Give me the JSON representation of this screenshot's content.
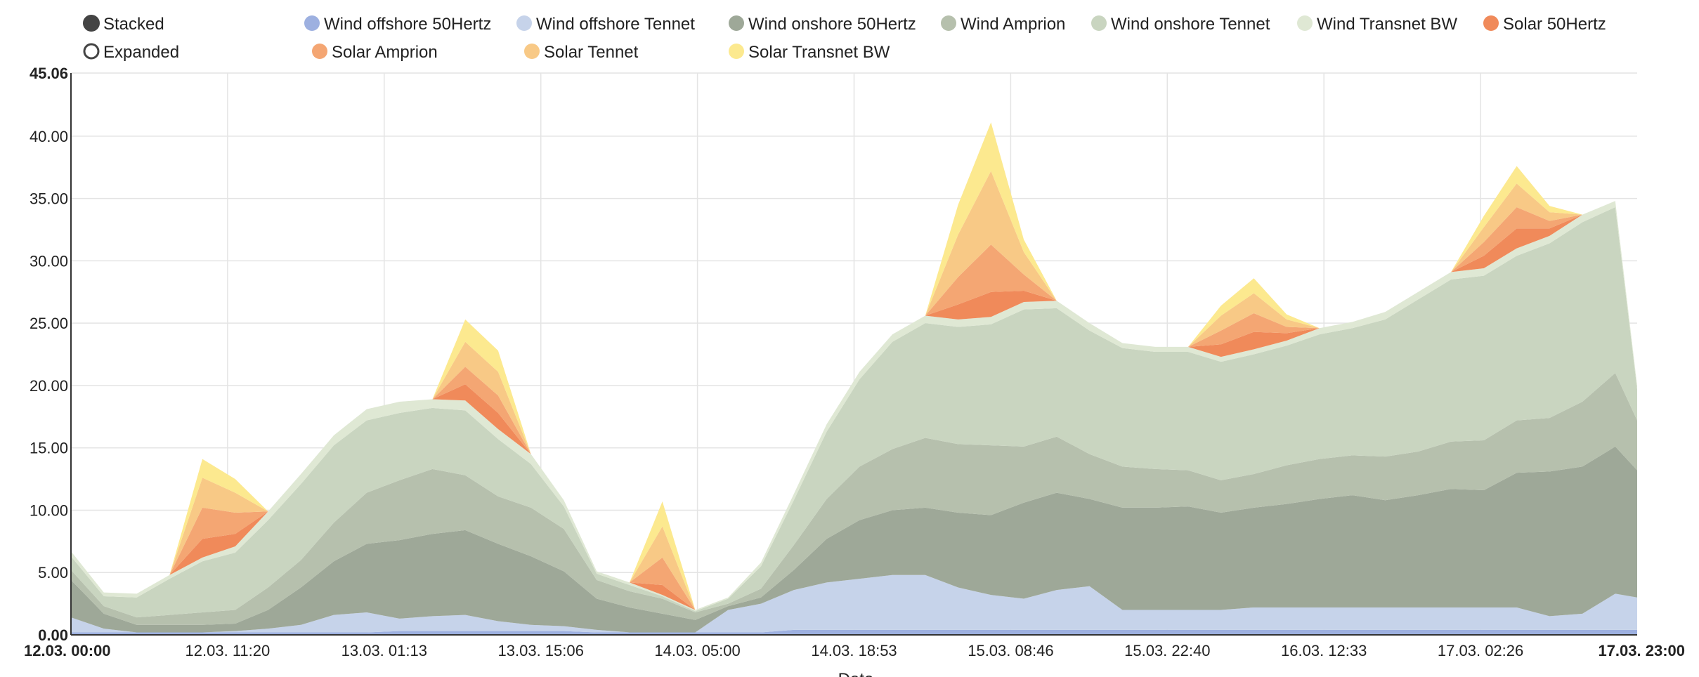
{
  "controls": {
    "stacked_label": "Stacked",
    "expanded_label": "Expanded",
    "selected": "stacked"
  },
  "chart_data": {
    "type": "area",
    "stacked": true,
    "xlabel": "Date",
    "ylabel": "",
    "ylim": [
      0,
      45.06
    ],
    "y_ticks": [
      "0.00",
      "5.00",
      "10.00",
      "15.00",
      "20.00",
      "25.00",
      "30.00",
      "35.00",
      "40.00",
      "45.06"
    ],
    "x_range": [
      "2015-03-12 00:00",
      "2015-03-17 23:00"
    ],
    "x_ticks": [
      "12.03. 00:00",
      "12.03. 11:20",
      "13.03. 01:13",
      "13.03. 15:06",
      "14.03. 05:00",
      "14.03. 18:53",
      "15.03. 08:46",
      "15.03. 22:40",
      "16.03. 12:33",
      "17.03. 02:26",
      "17.03. 23:00"
    ],
    "grid": true,
    "legend_position": "top",
    "x": [
      0,
      3,
      6,
      9,
      12,
      15,
      18,
      21,
      24,
      27,
      30,
      33,
      36,
      39,
      42,
      45,
      48,
      51,
      54,
      57,
      60,
      63,
      66,
      69,
      72,
      75,
      78,
      81,
      84,
      87,
      90,
      93,
      96,
      99,
      102,
      105,
      108,
      111,
      114,
      117,
      120,
      123,
      126,
      129,
      132,
      135,
      138,
      141,
      143
    ],
    "series": [
      {
        "name": "Wind offshore 50Hertz",
        "color": "#9db0e0",
        "values": [
          0.2,
          0.2,
          0.2,
          0.2,
          0.2,
          0.2,
          0.2,
          0.2,
          0.2,
          0.2,
          0.3,
          0.3,
          0.3,
          0.3,
          0.3,
          0.3,
          0.2,
          0.2,
          0.2,
          0.2,
          0.2,
          0.2,
          0.4,
          0.4,
          0.4,
          0.4,
          0.4,
          0.4,
          0.4,
          0.4,
          0.4,
          0.4,
          0.4,
          0.4,
          0.4,
          0.4,
          0.4,
          0.4,
          0.4,
          0.4,
          0.4,
          0.4,
          0.4,
          0.4,
          0.4,
          0.4,
          0.4,
          0.4,
          0.4
        ]
      },
      {
        "name": "Wind offshore Tennet",
        "color": "#c6d3ea",
        "values": [
          1.2,
          0.3,
          0.0,
          0.0,
          0.0,
          0.1,
          0.3,
          0.6,
          1.4,
          1.6,
          1.0,
          1.2,
          1.3,
          0.8,
          0.5,
          0.4,
          0.2,
          0.0,
          0.0,
          0.0,
          1.8,
          2.3,
          3.2,
          3.8,
          4.1,
          4.4,
          4.4,
          3.4,
          2.8,
          2.5,
          3.2,
          3.5,
          1.6,
          1.6,
          1.6,
          1.6,
          1.8,
          1.8,
          1.8,
          1.8,
          1.8,
          1.8,
          1.8,
          1.8,
          1.8,
          1.1,
          1.3,
          2.9,
          2.6
        ]
      },
      {
        "name": "Wind onshore 50Hertz",
        "color": "#9ea898",
        "values": [
          3.0,
          1.2,
          0.6,
          0.6,
          0.6,
          0.6,
          1.5,
          3.0,
          4.3,
          5.5,
          6.3,
          6.6,
          6.8,
          6.2,
          5.5,
          4.4,
          2.5,
          2.0,
          1.5,
          1.0,
          0.3,
          0.5,
          1.6,
          3.5,
          4.7,
          5.2,
          5.4,
          6.0,
          6.4,
          7.7,
          7.8,
          7.0,
          8.2,
          8.2,
          8.3,
          7.8,
          8.0,
          8.3,
          8.7,
          9.0,
          8.6,
          9.0,
          9.5,
          9.4,
          10.8,
          11.6,
          11.8,
          11.8,
          10.2
        ]
      },
      {
        "name": "Wind Amprion",
        "color": "#b6c0ad",
        "values": [
          0.8,
          0.6,
          0.6,
          0.8,
          1.0,
          1.1,
          1.8,
          2.2,
          3.1,
          4.1,
          4.8,
          5.2,
          4.4,
          3.8,
          3.9,
          3.4,
          1.5,
          1.3,
          1.2,
          0.6,
          0.2,
          0.7,
          2.0,
          3.2,
          4.3,
          4.9,
          5.6,
          5.5,
          5.6,
          4.5,
          4.5,
          3.6,
          3.3,
          3.1,
          2.9,
          2.6,
          2.7,
          3.1,
          3.2,
          3.2,
          3.5,
          3.5,
          3.8,
          4.0,
          4.2,
          4.3,
          5.2,
          5.9,
          4.0
        ]
      },
      {
        "name": "Wind onshore Tennet",
        "color": "#c9d5c0",
        "values": [
          1.1,
          0.8,
          1.6,
          2.9,
          4.1,
          4.6,
          5.4,
          6.1,
          6.2,
          5.8,
          5.4,
          4.9,
          5.2,
          4.6,
          3.5,
          1.8,
          0.5,
          0.5,
          0.2,
          0.1,
          0.4,
          1.8,
          3.6,
          5.4,
          7.0,
          8.6,
          9.2,
          9.4,
          9.7,
          11.0,
          10.3,
          9.9,
          9.5,
          9.4,
          9.5,
          9.5,
          9.6,
          9.6,
          10.0,
          10.2,
          11.0,
          12.2,
          13.0,
          13.2,
          13.2,
          14.0,
          14.4,
          13.3,
          2.5
        ]
      },
      {
        "name": "Wind Transnet BW",
        "color": "#dfe8d4",
        "values": [
          0.4,
          0.3,
          0.3,
          0.3,
          0.3,
          0.5,
          0.7,
          0.8,
          0.8,
          0.9,
          0.9,
          0.7,
          0.8,
          0.8,
          0.8,
          0.5,
          0.2,
          0.2,
          0.1,
          0.1,
          0.1,
          0.3,
          0.5,
          0.6,
          0.6,
          0.6,
          0.6,
          0.6,
          0.6,
          0.6,
          0.6,
          0.6,
          0.4,
          0.4,
          0.4,
          0.4,
          0.4,
          0.4,
          0.5,
          0.5,
          0.6,
          0.6,
          0.6,
          0.6,
          0.6,
          0.6,
          0.6,
          0.5,
          0.3
        ]
      },
      {
        "name": "Solar 50Hertz",
        "color": "#f08a5a",
        "values": [
          0.0,
          0.0,
          0.0,
          0.0,
          1.5,
          1.0,
          0.0,
          0.0,
          0.0,
          0.0,
          0.0,
          0.0,
          1.3,
          1.3,
          0.0,
          0.0,
          0.0,
          0.0,
          0.8,
          0.0,
          0.0,
          0.0,
          0.0,
          0.0,
          0.0,
          0.0,
          0.0,
          1.2,
          2.0,
          0.9,
          0.0,
          0.0,
          0.0,
          0.0,
          0.0,
          1.0,
          1.4,
          0.6,
          0.0,
          0.0,
          0.0,
          0.0,
          0.0,
          1.0,
          1.6,
          0.6,
          0.0,
          0.0,
          0.0
        ]
      },
      {
        "name": "Solar Amprion",
        "color": "#f4a673",
        "values": [
          0.0,
          0.0,
          0.0,
          0.0,
          2.5,
          1.7,
          0.0,
          0.0,
          0.0,
          0.0,
          0.0,
          0.0,
          1.4,
          1.4,
          0.0,
          0.0,
          0.0,
          0.0,
          2.2,
          0.0,
          0.0,
          0.0,
          0.0,
          0.0,
          0.0,
          0.0,
          0.0,
          2.2,
          3.8,
          1.3,
          0.0,
          0.0,
          0.0,
          0.0,
          0.0,
          1.1,
          1.5,
          0.5,
          0.0,
          0.0,
          0.0,
          0.0,
          0.0,
          1.1,
          1.7,
          0.6,
          0.0,
          0.0,
          0.0
        ]
      },
      {
        "name": "Solar Tennet",
        "color": "#f8c986",
        "values": [
          0.0,
          0.0,
          0.0,
          0.0,
          2.4,
          1.6,
          0.0,
          0.0,
          0.0,
          0.0,
          0.0,
          0.0,
          2.0,
          1.9,
          0.0,
          0.0,
          0.0,
          0.0,
          2.5,
          0.0,
          0.0,
          0.0,
          0.0,
          0.0,
          0.0,
          0.0,
          0.0,
          3.4,
          5.9,
          1.8,
          0.0,
          0.0,
          0.0,
          0.0,
          0.0,
          1.2,
          1.6,
          0.6,
          0.0,
          0.0,
          0.0,
          0.0,
          0.0,
          1.2,
          1.9,
          0.7,
          0.0,
          0.0,
          0.0
        ]
      },
      {
        "name": "Solar Transnet BW",
        "color": "#fce98f",
        "values": [
          0.0,
          0.0,
          0.0,
          0.0,
          1.5,
          1.1,
          0.0,
          0.0,
          0.0,
          0.0,
          0.0,
          0.0,
          1.8,
          1.7,
          0.0,
          0.0,
          0.0,
          0.0,
          2.0,
          0.0,
          0.0,
          0.0,
          0.0,
          0.0,
          0.0,
          0.0,
          0.0,
          2.4,
          3.9,
          1.0,
          0.0,
          0.0,
          0.0,
          0.0,
          0.0,
          0.8,
          1.2,
          0.4,
          0.0,
          0.0,
          0.0,
          0.0,
          0.0,
          0.9,
          1.4,
          0.5,
          0.0,
          0.0,
          0.0
        ]
      }
    ]
  }
}
